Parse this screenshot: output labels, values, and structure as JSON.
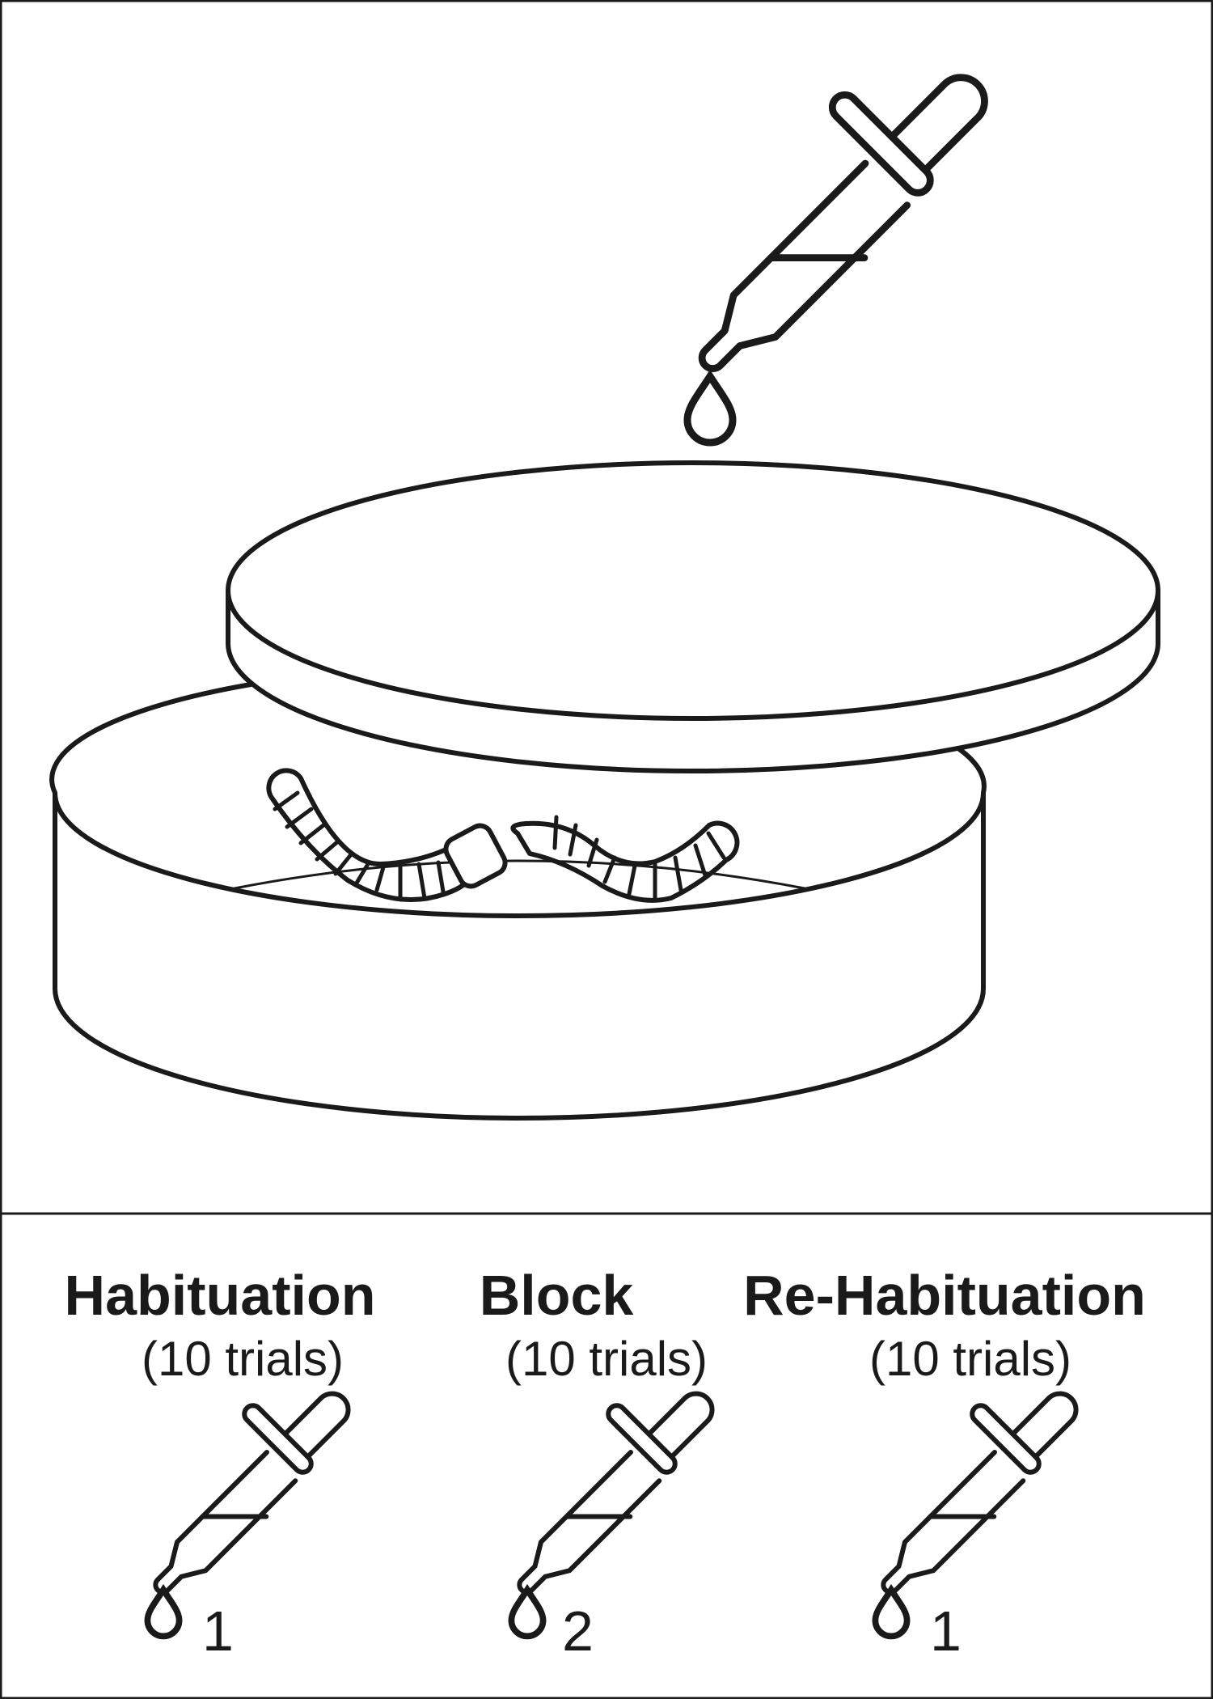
{
  "colors": {
    "ink": "#1a1a1a",
    "background": "#ffffff"
  },
  "icons": {
    "dropper": "dropper-icon",
    "drop": "drop-icon",
    "dish": "petri-dish",
    "worm": "worm"
  },
  "phases": [
    {
      "title": "Habituation",
      "trials": "(10 trials)",
      "drops": "1"
    },
    {
      "title": "Block",
      "trials": "(10 trials)",
      "drops": "2"
    },
    {
      "title": "Re-Habituation",
      "trials": "(10 trials)",
      "drops": "1"
    }
  ]
}
